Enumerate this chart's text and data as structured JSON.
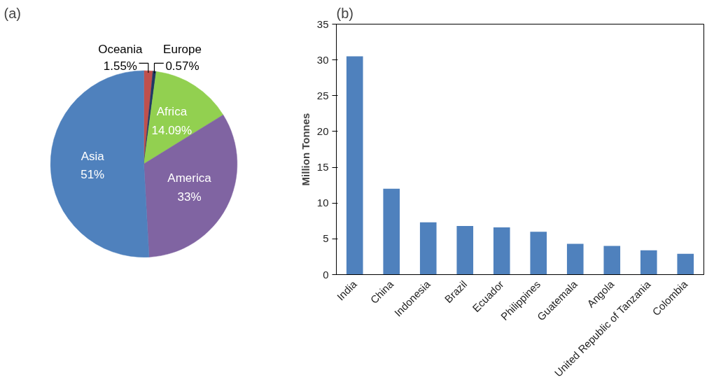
{
  "chart_data": [
    {
      "type": "pie",
      "title": "(a)",
      "categories": [
        "Oceania",
        "Europe",
        "Africa",
        "America",
        "Asia"
      ],
      "values": [
        1.55,
        0.57,
        14.09,
        33,
        51
      ],
      "colors": [
        "#c0504d",
        "#1f3864",
        "#92d050",
        "#8064a2",
        "#4f81bd"
      ],
      "value_labels": [
        "1.55%",
        "0.57%",
        "14.09%",
        "33%",
        "51%"
      ]
    },
    {
      "type": "bar",
      "title": "(b)",
      "ylabel": "Million Tonnes",
      "categories": [
        "India",
        "China",
        "Indonesia",
        "Brazil",
        "Ecuador",
        "Philippines",
        "Guatemala",
        "Angola",
        "United Republic of Tanzania",
        "Colombia"
      ],
      "values": [
        30.5,
        12,
        7.3,
        6.8,
        6.6,
        6.0,
        4.3,
        4.0,
        3.4,
        2.9
      ],
      "color": "#4f81bd",
      "ylim": [
        0,
        35
      ],
      "yticks": [
        0,
        5,
        10,
        15,
        20,
        25,
        30,
        35
      ]
    }
  ]
}
